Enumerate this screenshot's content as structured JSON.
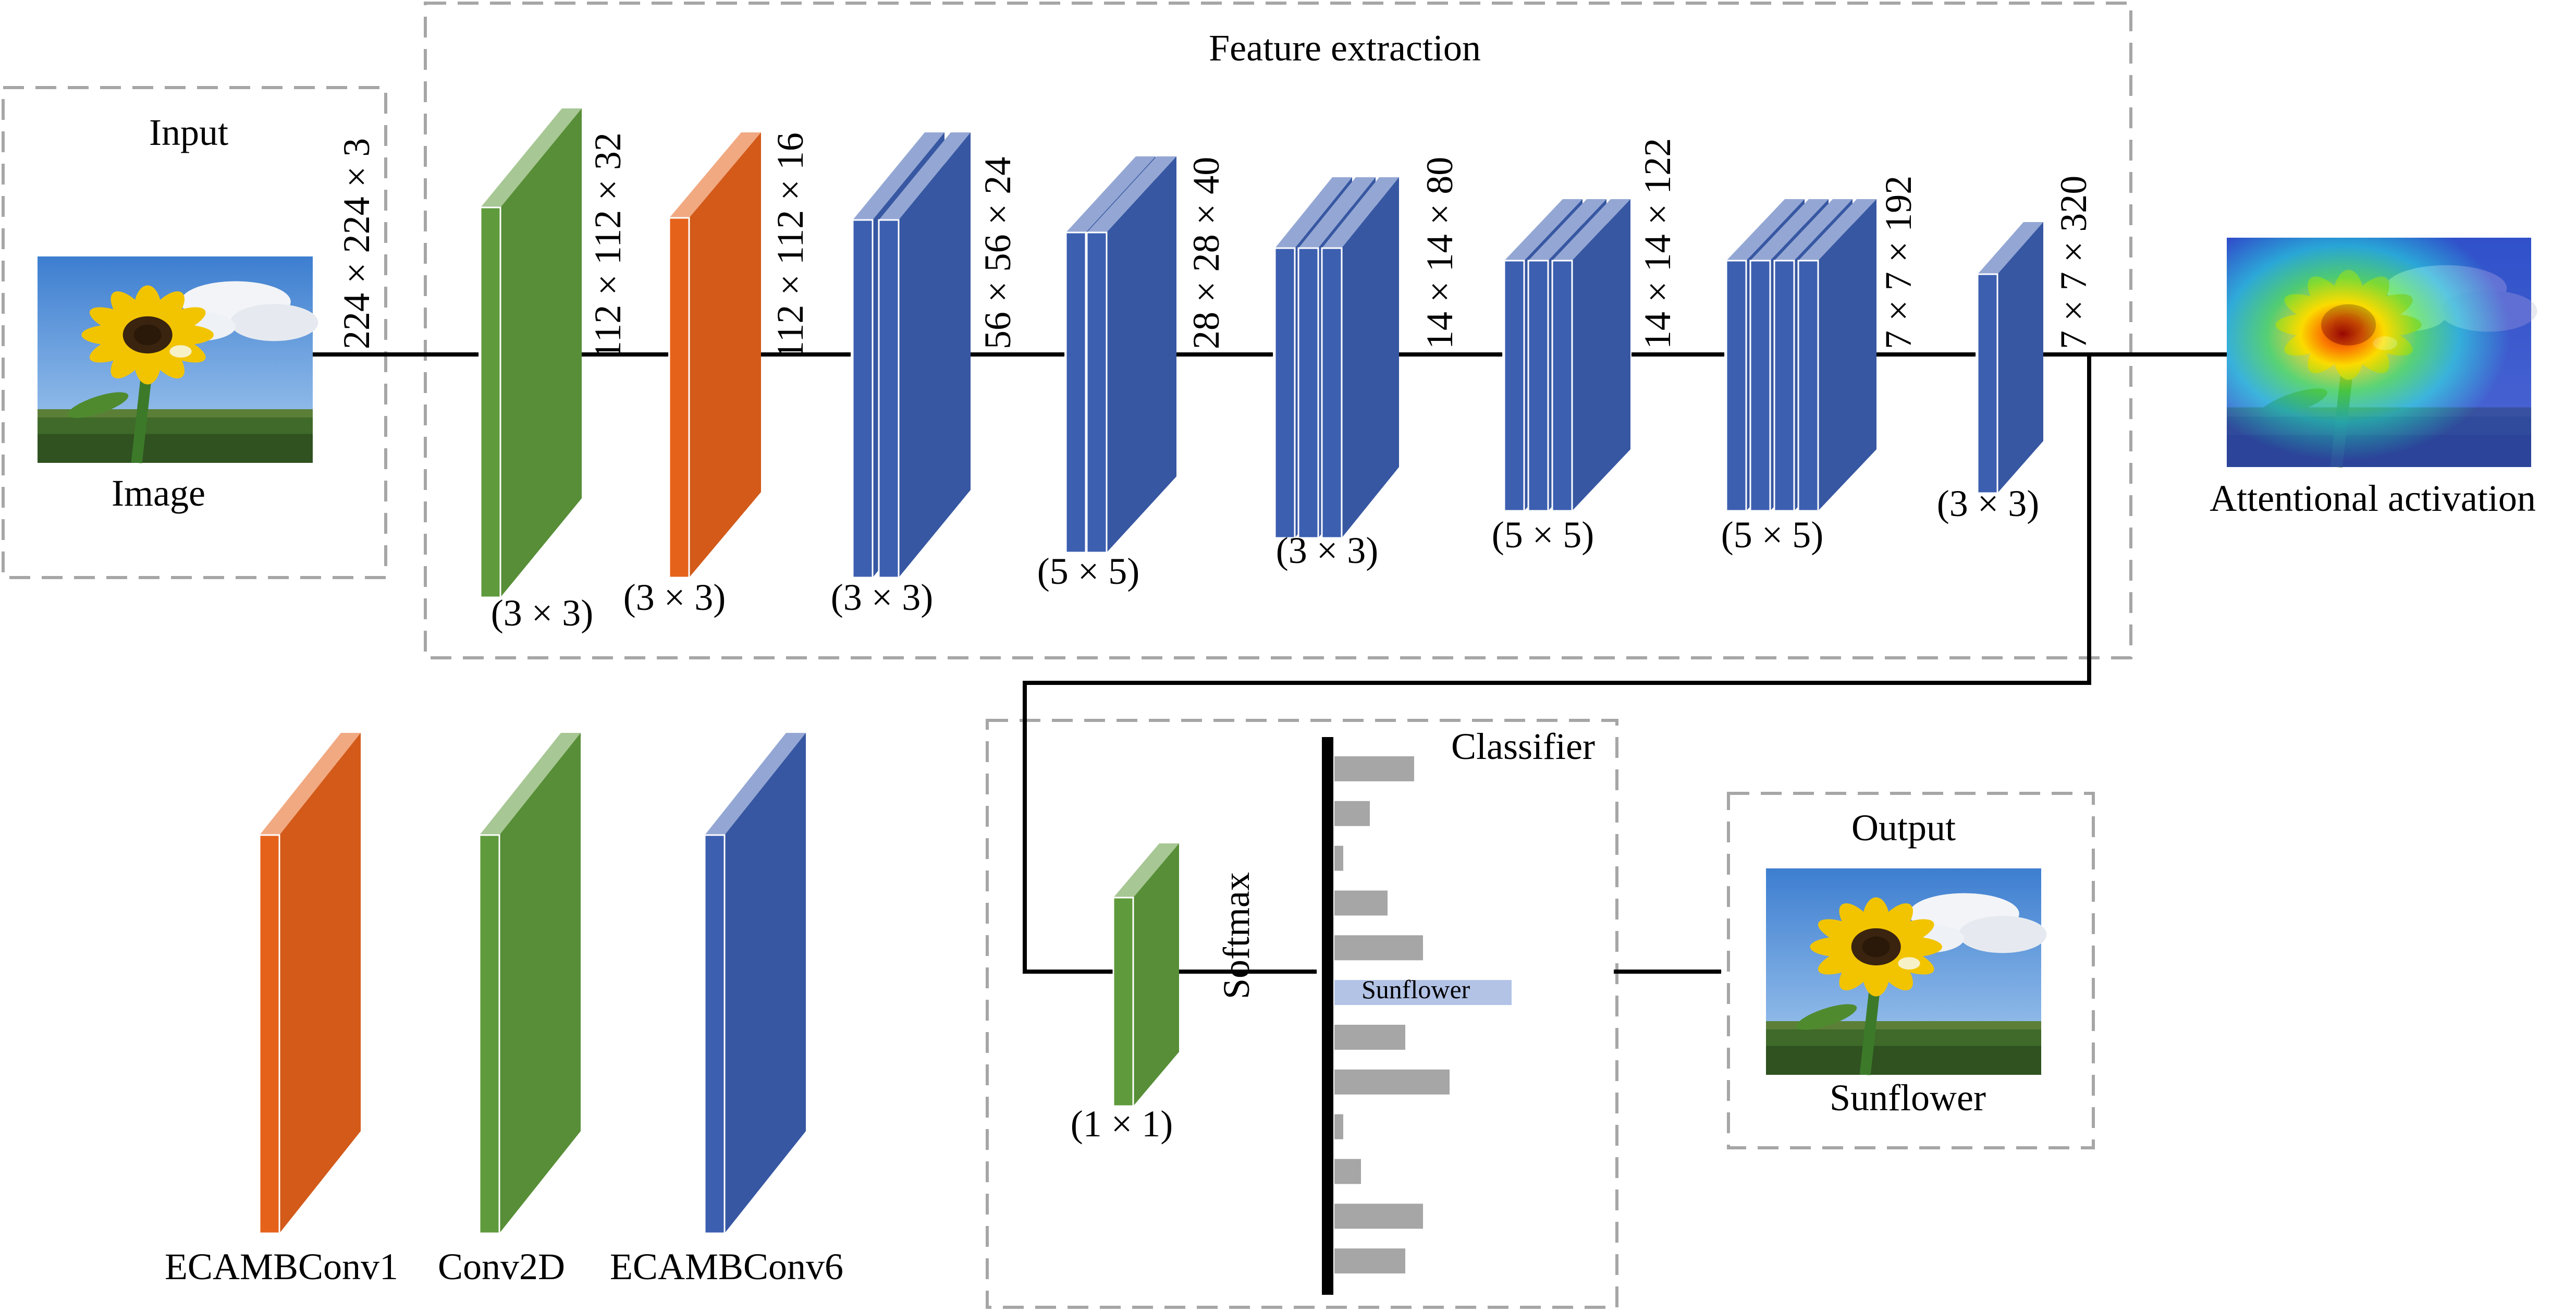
{
  "sections": {
    "input": "Input",
    "feature_extraction": "Feature extraction",
    "classifier": "Classifier",
    "output": "Output"
  },
  "input": {
    "image_label": "Image"
  },
  "dims": [
    "224 × 224 × 3",
    "112 × 112 × 32",
    "112 × 112 × 16",
    "56 × 56 × 24",
    "28 × 28 × 40",
    "14 × 14 × 80",
    "14 × 14 × 122",
    "7 × 7 × 192",
    "7 × 7 × 320"
  ],
  "blocks": [
    {
      "type": "Conv2D",
      "count": 1,
      "kernel": "(3 × 3)"
    },
    {
      "type": "ECAMBConv1",
      "count": 1,
      "kernel": "(3 × 3)"
    },
    {
      "type": "ECAMBConv6",
      "count": 2,
      "kernel": "(3 × 3)"
    },
    {
      "type": "ECAMBConv6",
      "count": 2,
      "kernel": "(5 × 5)"
    },
    {
      "type": "ECAMBConv6",
      "count": 3,
      "kernel": "(3 × 3)"
    },
    {
      "type": "ECAMBConv6",
      "count": 3,
      "kernel": "(5 × 5)"
    },
    {
      "type": "ECAMBConv6",
      "count": 4,
      "kernel": "(5 × 5)"
    },
    {
      "type": "ECAMBConv6",
      "count": 1,
      "kernel": "(3 × 3)"
    }
  ],
  "attention_label": "Attentional activation",
  "classifier": {
    "conv_kernel": "(1 × 1)",
    "activation": "Softmax",
    "class_scores": [
      0.45,
      0.2,
      0.05,
      0.3,
      0.5,
      1.0,
      0.4,
      0.65,
      0.05,
      0.15,
      0.5,
      0.4
    ],
    "highlight_index": 5,
    "highlight_label": "Sunflower"
  },
  "output": {
    "label": "Sunflower"
  },
  "legend": [
    {
      "label": "ECAMBConv1",
      "color": "#e5621b"
    },
    {
      "label": "Conv2D",
      "color": "#5f9a3c"
    },
    {
      "label": "ECAMBConv6",
      "color": "#3c5fb0"
    }
  ],
  "colors": {
    "ECAMBConv1": "#e5621b",
    "Conv2D": "#5f9a3c",
    "ECAMBConv6": "#3c5fb0",
    "highlight_bar": "#b3c3e6",
    "score_bar": "#a6a6a6"
  }
}
